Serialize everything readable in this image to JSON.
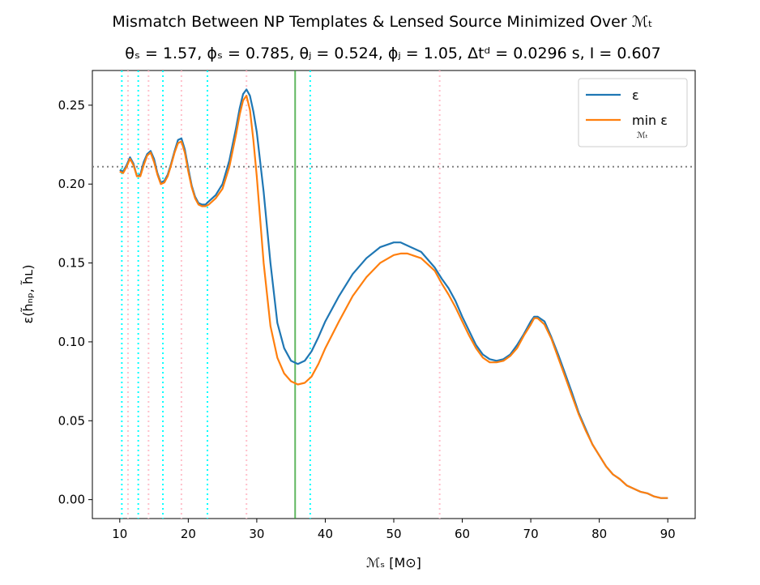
{
  "chart_data": {
    "type": "line",
    "title": "Mismatch Between NP Templates & Lensed Source Minimized Over ℳₜ",
    "subtitle": "θₛ = 1.57, ϕₛ = 0.785, θⱼ = 0.524, ϕⱼ = 1.05, Δtᵈ = 0.0296 s, I = 0.607",
    "xlabel": "ℳₛ [M⊙]",
    "ylabel": "ε(h̃ₙₚ, h̃ʟ)",
    "xlim": [
      6,
      94
    ],
    "ylim": [
      -0.012,
      0.272
    ],
    "xticks": [
      10,
      20,
      30,
      40,
      50,
      60,
      70,
      80,
      90
    ],
    "xtick_labels": [
      "10",
      "20",
      "30",
      "40",
      "50",
      "60",
      "70",
      "80",
      "90"
    ],
    "yticks": [
      0.0,
      0.05,
      0.1,
      0.15,
      0.2,
      0.25
    ],
    "ytick_labels": [
      "0.00",
      "0.05",
      "0.10",
      "0.15",
      "0.20",
      "0.25"
    ],
    "grid": false,
    "legend_position": "top-right",
    "series": [
      {
        "name": "ε",
        "color": "#1f77b4",
        "x": [
          10,
          10.5,
          11,
          11.5,
          12,
          12.5,
          13,
          13.5,
          14,
          14.5,
          15,
          15.5,
          16,
          16.5,
          17,
          17.5,
          18,
          18.5,
          19,
          19.5,
          20,
          20.5,
          21,
          21.5,
          22,
          22.5,
          23,
          24,
          25,
          26,
          27,
          27.5,
          28,
          28.5,
          29,
          29.5,
          30,
          31,
          32,
          33,
          34,
          35,
          36,
          37,
          38,
          39,
          40,
          42,
          44,
          46,
          48,
          50,
          51,
          52,
          54,
          56,
          57,
          58,
          59,
          60,
          61,
          62,
          63,
          64,
          65,
          66,
          67,
          68,
          69,
          70,
          70.5,
          71,
          72,
          73,
          74,
          75,
          76,
          77,
          78,
          79,
          80,
          81,
          82,
          83,
          84,
          85,
          86,
          87,
          88,
          89,
          90
        ],
        "y": [
          0.209,
          0.208,
          0.212,
          0.217,
          0.213,
          0.205,
          0.206,
          0.214,
          0.219,
          0.221,
          0.216,
          0.207,
          0.201,
          0.202,
          0.206,
          0.213,
          0.221,
          0.228,
          0.229,
          0.222,
          0.21,
          0.199,
          0.192,
          0.188,
          0.187,
          0.187,
          0.189,
          0.193,
          0.2,
          0.215,
          0.236,
          0.248,
          0.257,
          0.26,
          0.256,
          0.246,
          0.233,
          0.195,
          0.15,
          0.112,
          0.096,
          0.088,
          0.086,
          0.088,
          0.094,
          0.103,
          0.113,
          0.129,
          0.143,
          0.153,
          0.16,
          0.163,
          0.163,
          0.161,
          0.157,
          0.147,
          0.14,
          0.134,
          0.126,
          0.116,
          0.107,
          0.098,
          0.092,
          0.089,
          0.088,
          0.089,
          0.092,
          0.098,
          0.105,
          0.113,
          0.116,
          0.116,
          0.113,
          0.103,
          0.092,
          0.08,
          0.068,
          0.055,
          0.045,
          0.035,
          0.028,
          0.021,
          0.016,
          0.013,
          0.009,
          0.007,
          0.005,
          0.004,
          0.002,
          0.001,
          0.001
        ]
      },
      {
        "name": "min ε",
        "name_subscript": "ℳₜ",
        "color": "#ff7f0e",
        "x": [
          10,
          10.5,
          11,
          11.5,
          12,
          12.5,
          13,
          13.5,
          14,
          14.5,
          15,
          15.5,
          16,
          16.5,
          17,
          17.5,
          18,
          18.5,
          19,
          19.5,
          20,
          20.5,
          21,
          21.5,
          22,
          22.5,
          23,
          24,
          25,
          26,
          27,
          27.5,
          28,
          28.5,
          29,
          29.5,
          30,
          31,
          32,
          33,
          34,
          35,
          36,
          37,
          38,
          39,
          40,
          42,
          44,
          46,
          48,
          50,
          51,
          52,
          54,
          56,
          57,
          58,
          59,
          60,
          61,
          62,
          63,
          64,
          65,
          66,
          67,
          68,
          69,
          70,
          70.5,
          71,
          72,
          73,
          74,
          75,
          76,
          77,
          78,
          79,
          80,
          81,
          82,
          83,
          84,
          85,
          86,
          87,
          88,
          89,
          90
        ],
        "y": [
          0.208,
          0.207,
          0.211,
          0.216,
          0.212,
          0.205,
          0.205,
          0.212,
          0.218,
          0.22,
          0.214,
          0.206,
          0.2,
          0.201,
          0.205,
          0.212,
          0.22,
          0.226,
          0.227,
          0.22,
          0.208,
          0.198,
          0.191,
          0.187,
          0.186,
          0.186,
          0.187,
          0.191,
          0.197,
          0.211,
          0.232,
          0.244,
          0.253,
          0.256,
          0.247,
          0.228,
          0.205,
          0.15,
          0.11,
          0.09,
          0.08,
          0.075,
          0.073,
          0.074,
          0.078,
          0.086,
          0.096,
          0.113,
          0.129,
          0.141,
          0.15,
          0.155,
          0.156,
          0.156,
          0.153,
          0.145,
          0.137,
          0.13,
          0.122,
          0.113,
          0.104,
          0.096,
          0.09,
          0.087,
          0.087,
          0.088,
          0.091,
          0.096,
          0.104,
          0.111,
          0.115,
          0.115,
          0.111,
          0.102,
          0.09,
          0.078,
          0.066,
          0.054,
          0.044,
          0.035,
          0.028,
          0.021,
          0.016,
          0.013,
          0.009,
          0.007,
          0.005,
          0.004,
          0.002,
          0.001,
          0.001
        ]
      }
    ],
    "reference_lines": {
      "horizontal_dotted": {
        "y": 0.211,
        "color": "#808080"
      },
      "vertical_solid": {
        "x": 35.6,
        "color": "#2ca02c"
      },
      "vertical_cyan_dotted": {
        "x": [
          10.3,
          12.7,
          16.3,
          22.8,
          37.8
        ],
        "color": "#00ffff"
      },
      "vertical_pink_dotted": {
        "x": [
          11.2,
          14.2,
          19.0,
          28.5,
          56.7
        ],
        "color": "#ffc0cb"
      }
    }
  }
}
